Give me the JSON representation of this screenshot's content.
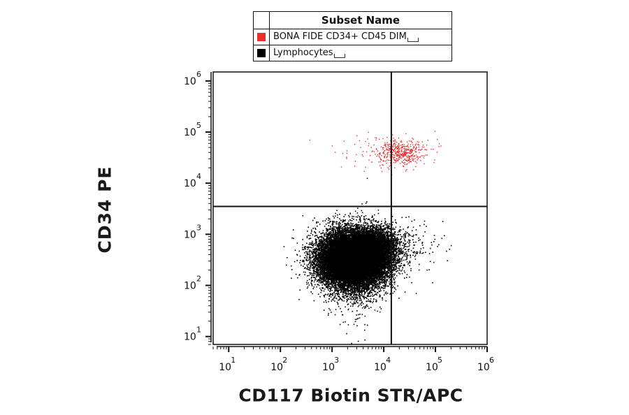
{
  "legend": {
    "header": "Subset Name",
    "items": [
      {
        "label": "BONA FIDE CD34+ CD45 DIM",
        "color": "#e8312c"
      },
      {
        "label": "Lymphocytes",
        "color": "#000000"
      }
    ]
  },
  "chart_data": {
    "type": "scatter",
    "xlabel": "CD117 Biotin STR/APC",
    "ylabel": "CD34 PE",
    "x_scale": "log",
    "y_scale": "log",
    "xlim": [
      5,
      1000000
    ],
    "ylim": [
      7,
      1500000
    ],
    "x_ticks": [
      {
        "base": "10",
        "exp": "1",
        "value": 10
      },
      {
        "base": "10",
        "exp": "2",
        "value": 100
      },
      {
        "base": "10",
        "exp": "3",
        "value": 1000
      },
      {
        "base": "10",
        "exp": "4",
        "value": 10000
      },
      {
        "base": "10",
        "exp": "5",
        "value": 100000
      },
      {
        "base": "10",
        "exp": "6",
        "value": 1000000
      }
    ],
    "y_ticks": [
      {
        "base": "10",
        "exp": "1",
        "value": 10
      },
      {
        "base": "10",
        "exp": "2",
        "value": 100
      },
      {
        "base": "10",
        "exp": "3",
        "value": 1000
      },
      {
        "base": "10",
        "exp": "4",
        "value": 10000
      },
      {
        "base": "10",
        "exp": "5",
        "value": 100000
      },
      {
        "base": "10",
        "exp": "6",
        "value": 1000000
      }
    ],
    "quadrant_gate": {
      "x": 14000,
      "y": 3500
    },
    "grid": false,
    "series": [
      {
        "name": "Lymphocytes",
        "color": "#000000",
        "populations": [
          {
            "center": [
              2500,
              330
            ],
            "spread_log": [
              0.33,
              0.27
            ],
            "count": 22000
          },
          {
            "center": [
              7000,
              600
            ],
            "spread_log": [
              0.25,
              0.2
            ],
            "count": 2200
          },
          {
            "center": [
              30000,
              600
            ],
            "spread_log": [
              0.35,
              0.3
            ],
            "count": 130
          },
          {
            "center": [
              2500,
              200
            ],
            "spread_log": [
              0.25,
              0.5
            ],
            "count": 600
          }
        ]
      },
      {
        "name": "BONA FIDE CD34+ CD45 DIM",
        "color": "#e8312c",
        "populations": [
          {
            "center": [
              22000,
              40000
            ],
            "spread_log": [
              0.22,
              0.12
            ],
            "count": 380
          },
          {
            "center": [
              10000,
              42000
            ],
            "spread_log": [
              0.5,
              0.2
            ],
            "count": 120
          }
        ]
      }
    ]
  }
}
